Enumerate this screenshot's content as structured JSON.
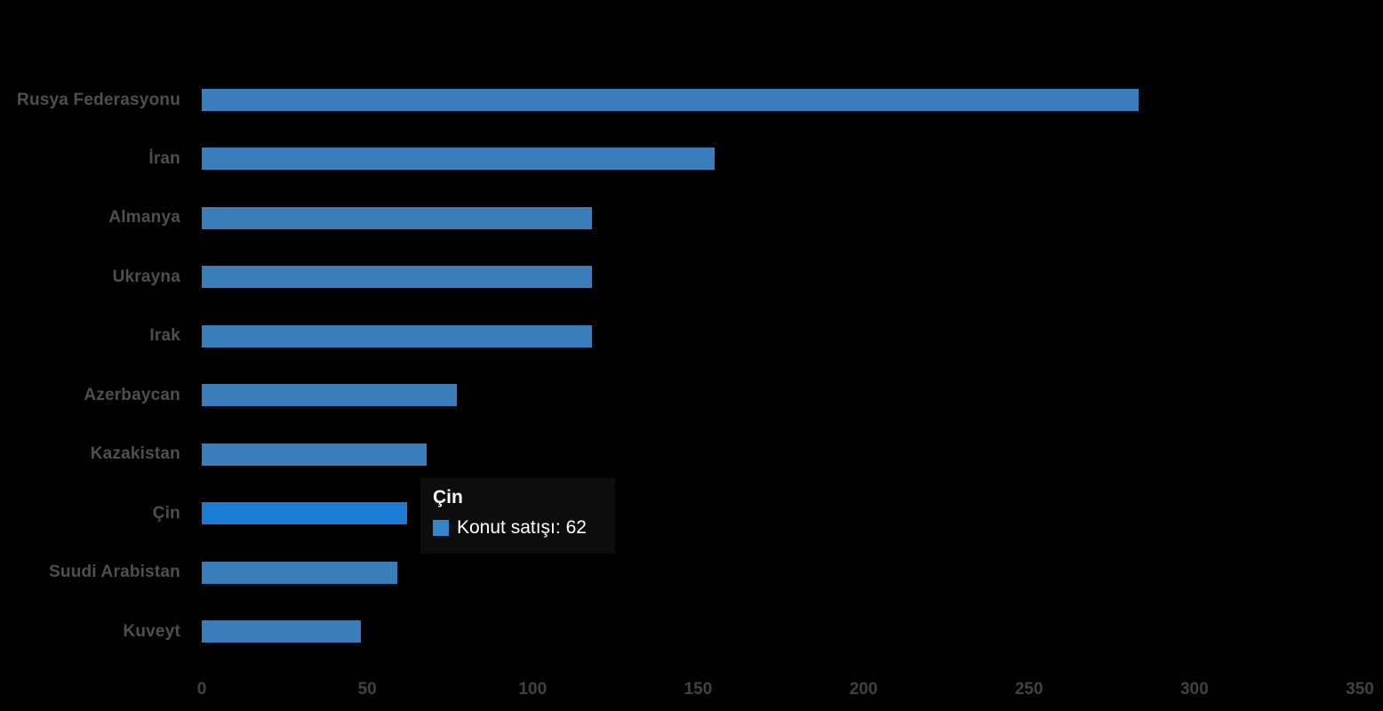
{
  "chart_data": {
    "type": "bar",
    "orientation": "horizontal",
    "categories": [
      "Rusya Federasyonu",
      "İran",
      "Almanya",
      "Ukrayna",
      "Irak",
      "Azerbaycan",
      "Kazakistan",
      "Çin",
      "Suudi Arabistan",
      "Kuveyt"
    ],
    "series": [
      {
        "name": "Konut satışı",
        "values": [
          283,
          155,
          118,
          118,
          118,
          77,
          68,
          62,
          59,
          48
        ]
      }
    ],
    "xlim": [
      0,
      350
    ],
    "x_ticks": [
      "0",
      "50",
      "100",
      "150",
      "200",
      "250",
      "300",
      "350"
    ],
    "grid": false,
    "legend": "none",
    "highlighted_category": "Çin"
  },
  "colors": {
    "background": "#000000",
    "bar": "#3a7fbb",
    "bar_highlight": "#1a7cd2",
    "category_label": "#4f4f4f",
    "tick_label": "#424242",
    "tooltip_background": "#0d0d0d",
    "tooltip_text": "#ffffff",
    "tooltip_swatch": "#3585c7"
  },
  "tooltip": {
    "title": "Çin",
    "text": "Konut satışı: 62"
  }
}
